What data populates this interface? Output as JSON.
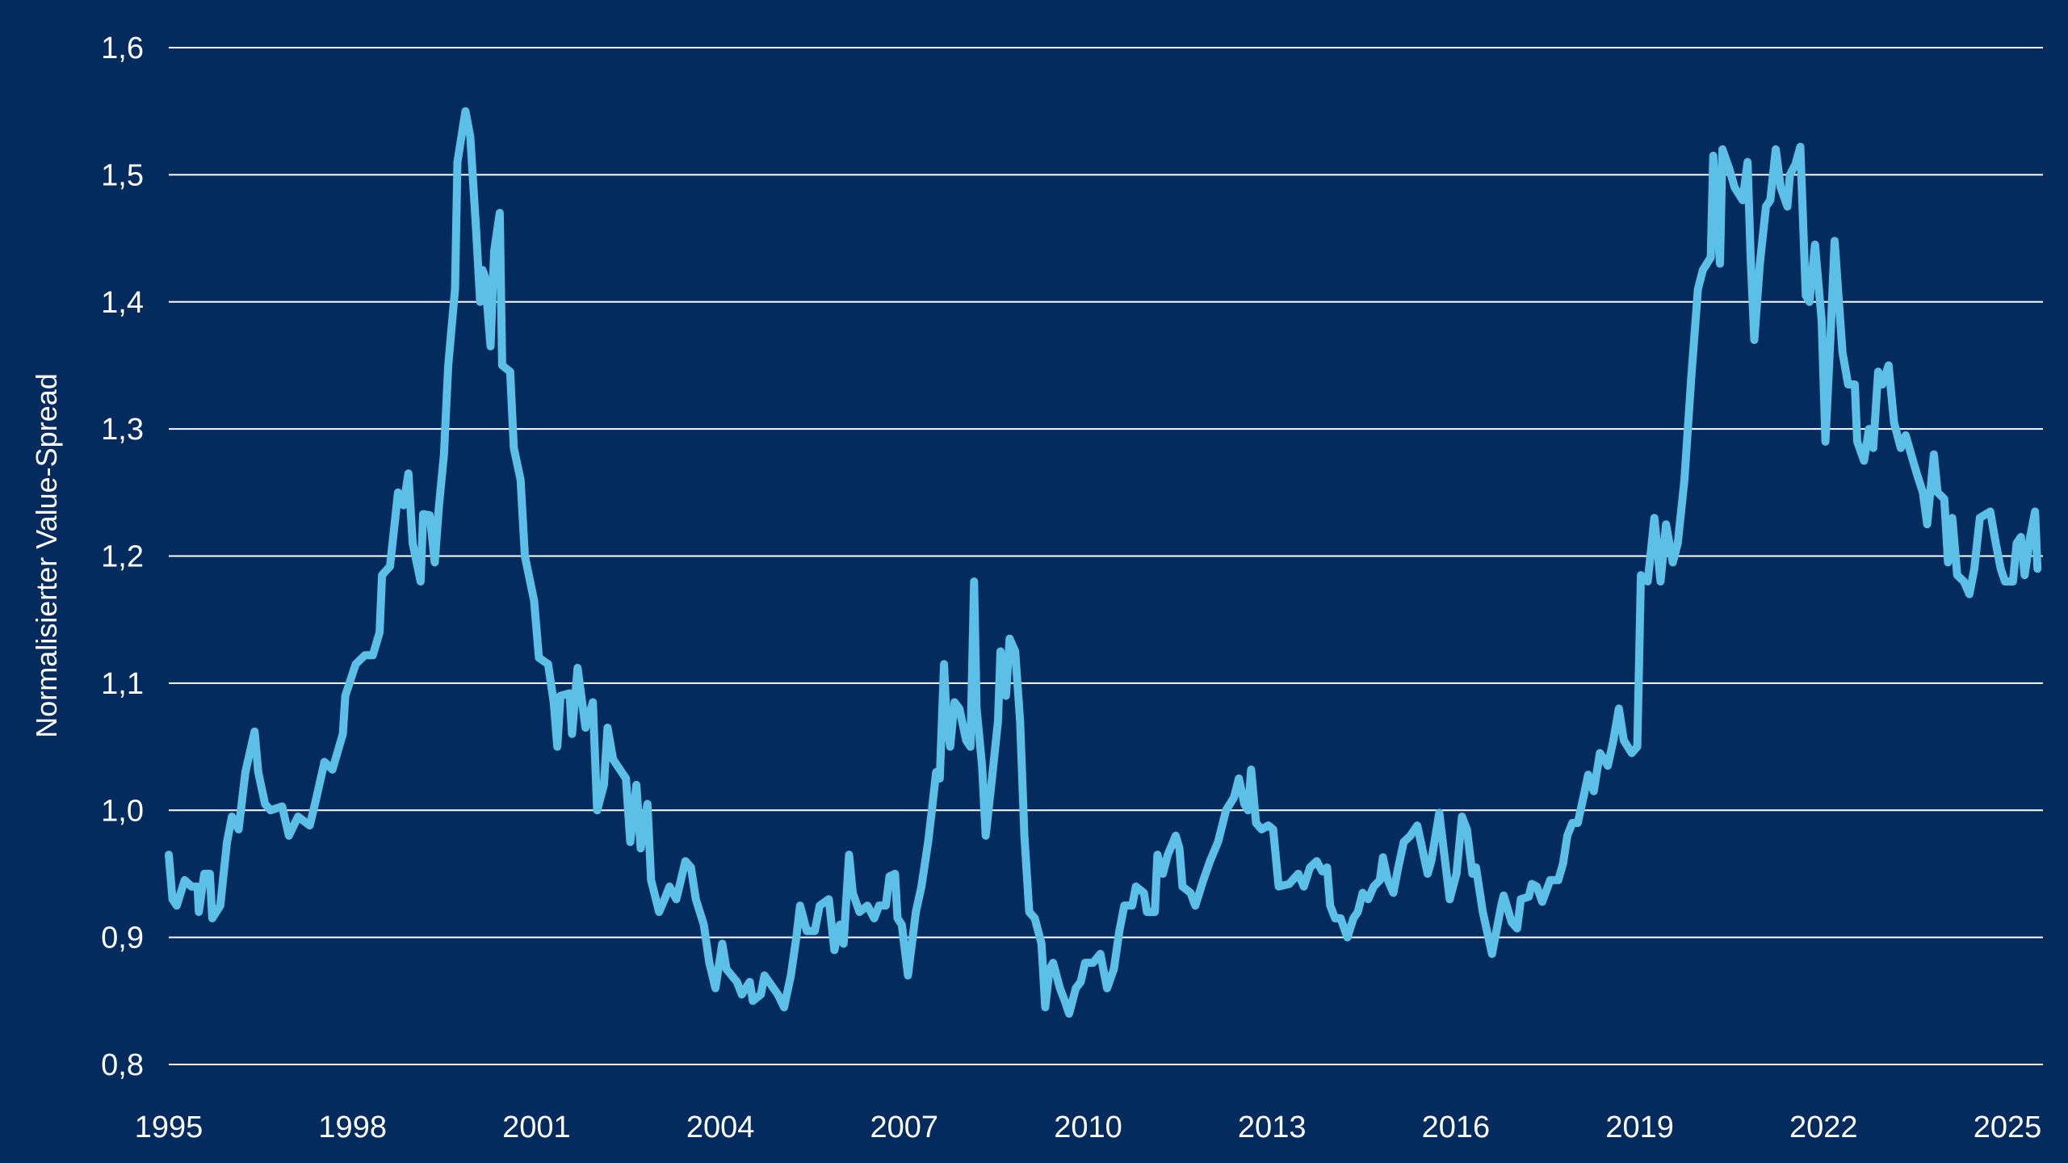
{
  "chart_data": {
    "type": "line",
    "title": "",
    "xlabel": "",
    "ylabel": "Normalisierter Value-Spread",
    "xlim": [
      1995,
      2025.5
    ],
    "ylim": [
      0.8,
      1.6
    ],
    "x_ticks": [
      1995,
      1998,
      2001,
      2004,
      2007,
      2010,
      2013,
      2016,
      2019,
      2022,
      2025
    ],
    "x_tick_labels": [
      "1995",
      "1998",
      "2001",
      "2004",
      "2007",
      "2010",
      "2013",
      "2016",
      "2019",
      "2022",
      "2025"
    ],
    "y_ticks": [
      0.8,
      0.9,
      1.0,
      1.1,
      1.2,
      1.3,
      1.4,
      1.5,
      1.6
    ],
    "y_tick_labels": [
      "0,8",
      "0,9",
      "1,0",
      "1,1",
      "1,2",
      "1,3",
      "1,4",
      "1,5",
      "1,6"
    ],
    "grid": "horizontal",
    "colors": {
      "background": "#032b5e",
      "line": "#5bbfe6",
      "grid": "#ffffff",
      "text": "#ffffff"
    },
    "series": [
      {
        "x": [
          1995.0,
          1995.06,
          1995.13,
          1995.26,
          1995.37,
          1995.47,
          1995.49,
          1995.58,
          1995.67,
          1995.71,
          1995.84,
          1995.95,
          1996.03,
          1996.14,
          1996.25,
          1996.4,
          1996.46,
          1996.57,
          1996.66,
          1996.85,
          1996.96,
          1997.11,
          1997.3,
          1997.41,
          1997.54,
          1997.67,
          1997.84,
          1997.88,
          1998.05,
          1998.2,
          1998.33,
          1998.44,
          1998.48,
          1998.61,
          1998.74,
          1998.83,
          1998.91,
          1998.98,
          1999.11,
          1999.15,
          1999.26,
          1999.34,
          1999.41,
          1999.49,
          1999.56,
          1999.67,
          1999.71,
          1999.84,
          1999.92,
          2000.01,
          2000.08,
          2000.12,
          2000.16,
          2000.25,
          2000.31,
          2000.4,
          2000.44,
          2000.57,
          2000.63,
          2000.74,
          2000.81,
          2000.96,
          2001.04,
          2001.19,
          2001.28,
          2001.34,
          2001.39,
          2001.54,
          2001.58,
          2001.67,
          2001.8,
          2001.92,
          2001.99,
          2002.1,
          2002.16,
          2002.25,
          2002.46,
          2002.53,
          2002.63,
          2002.7,
          2002.81,
          2002.87,
          2003.0,
          2003.09,
          2003.17,
          2003.28,
          2003.43,
          2003.52,
          2003.6,
          2003.73,
          2003.82,
          2003.92,
          2004.03,
          2004.1,
          2004.27,
          2004.35,
          2004.48,
          2004.53,
          2004.66,
          2004.72,
          2004.94,
          2005.04,
          2005.15,
          2005.24,
          2005.3,
          2005.41,
          2005.54,
          2005.62,
          2005.77,
          2005.86,
          2005.95,
          2006.01,
          2006.1,
          2006.16,
          2006.27,
          2006.4,
          2006.51,
          2006.59,
          2006.7,
          2006.76,
          2006.85,
          2006.89,
          2006.96,
          2007.06,
          2007.19,
          2007.28,
          2007.39,
          2007.45,
          2007.52,
          2007.58,
          2007.65,
          2007.69,
          2007.75,
          2007.82,
          2007.9,
          2008.01,
          2008.08,
          2008.14,
          2008.18,
          2008.27,
          2008.33,
          2008.42,
          2008.53,
          2008.57,
          2008.66,
          2008.72,
          2008.81,
          2008.89,
          2008.96,
          2009.04,
          2009.13,
          2009.24,
          2009.3,
          2009.37,
          2009.43,
          2009.54,
          2009.62,
          2009.69,
          2009.8,
          2009.88,
          2009.95,
          2010.08,
          2010.2,
          2010.31,
          2010.42,
          2010.51,
          2010.59,
          2010.72,
          2010.78,
          2010.91,
          2010.96,
          2011.09,
          2011.13,
          2011.22,
          2011.3,
          2011.43,
          2011.49,
          2011.54,
          2011.67,
          2011.75,
          2011.88,
          2011.99,
          2012.12,
          2012.25,
          2012.38,
          2012.46,
          2012.55,
          2012.61,
          2012.66,
          2012.74,
          2012.83,
          2012.94,
          2013.02,
          2013.11,
          2013.28,
          2013.43,
          2013.52,
          2013.62,
          2013.73,
          2013.82,
          2013.9,
          2013.95,
          2014.03,
          2014.12,
          2014.23,
          2014.33,
          2014.4,
          2014.48,
          2014.57,
          2014.66,
          2014.76,
          2014.81,
          2014.89,
          2014.98,
          2015.06,
          2015.15,
          2015.26,
          2015.37,
          2015.43,
          2015.54,
          2015.6,
          2015.73,
          2015.8,
          2015.9,
          2016.01,
          2016.1,
          2016.18,
          2016.27,
          2016.33,
          2016.44,
          2016.59,
          2016.74,
          2016.78,
          2016.91,
          2017.0,
          2017.06,
          2017.19,
          2017.24,
          2017.32,
          2017.41,
          2017.54,
          2017.67,
          2017.75,
          2017.82,
          2017.9,
          2017.99,
          2018.08,
          2018.16,
          2018.25,
          2018.35,
          2018.42,
          2018.48,
          2018.57,
          2018.66,
          2018.74,
          2018.87,
          2018.96,
          2019.02,
          2019.13,
          2019.24,
          2019.34,
          2019.43,
          2019.54,
          2019.62,
          2019.73,
          2019.84,
          2019.95,
          2020.03,
          2020.16,
          2020.2,
          2020.31,
          2020.35,
          2020.46,
          2020.55,
          2020.68,
          2020.76,
          2020.81,
          2020.87,
          2020.96,
          2021.06,
          2021.13,
          2021.22,
          2021.3,
          2021.41,
          2021.45,
          2021.54,
          2021.62,
          2021.71,
          2021.77,
          2021.86,
          2021.97,
          2022.03,
          2022.12,
          2022.18,
          2022.25,
          2022.31,
          2022.4,
          2022.51,
          2022.55,
          2022.66,
          2022.74,
          2022.81,
          2022.89,
          2022.96,
          2023.06,
          2023.15,
          2023.26,
          2023.34,
          2023.43,
          2023.52,
          2023.62,
          2023.69,
          2023.8,
          2023.86,
          2023.97,
          2024.03,
          2024.1,
          2024.18,
          2024.29,
          2024.38,
          2024.46,
          2024.55,
          2024.72,
          2024.81,
          2024.89,
          2024.96,
          2025.09,
          2025.15,
          2025.22,
          2025.28,
          2025.37,
          2025.45,
          2025.49
        ],
        "values": [
          0.965,
          0.93,
          0.925,
          0.945,
          0.94,
          0.94,
          0.92,
          0.95,
          0.95,
          0.915,
          0.925,
          0.975,
          0.995,
          0.985,
          1.03,
          1.062,
          1.03,
          1.005,
          1.0,
          1.003,
          0.98,
          0.995,
          0.988,
          1.01,
          1.038,
          1.032,
          1.06,
          1.09,
          1.115,
          1.122,
          1.122,
          1.14,
          1.185,
          1.192,
          1.25,
          1.24,
          1.265,
          1.21,
          1.18,
          1.233,
          1.232,
          1.195,
          1.24,
          1.28,
          1.35,
          1.41,
          1.51,
          1.55,
          1.53,
          1.46,
          1.4,
          1.425,
          1.42,
          1.365,
          1.44,
          1.47,
          1.35,
          1.345,
          1.285,
          1.26,
          1.2,
          1.165,
          1.12,
          1.115,
          1.085,
          1.05,
          1.09,
          1.092,
          1.06,
          1.112,
          1.065,
          1.085,
          1.0,
          1.02,
          1.065,
          1.04,
          1.025,
          0.975,
          1.02,
          0.97,
          1.005,
          0.945,
          0.92,
          0.93,
          0.94,
          0.93,
          0.96,
          0.955,
          0.93,
          0.91,
          0.88,
          0.86,
          0.895,
          0.875,
          0.865,
          0.855,
          0.865,
          0.85,
          0.855,
          0.87,
          0.855,
          0.845,
          0.87,
          0.9,
          0.925,
          0.905,
          0.905,
          0.925,
          0.93,
          0.89,
          0.91,
          0.895,
          0.965,
          0.935,
          0.92,
          0.925,
          0.915,
          0.925,
          0.925,
          0.948,
          0.95,
          0.915,
          0.91,
          0.87,
          0.92,
          0.94,
          0.975,
          1.0,
          1.03,
          1.025,
          1.115,
          1.07,
          1.05,
          1.085,
          1.08,
          1.055,
          1.05,
          1.18,
          1.08,
          1.035,
          0.98,
          1.02,
          1.07,
          1.125,
          1.09,
          1.135,
          1.125,
          1.07,
          0.98,
          0.92,
          0.915,
          0.895,
          0.845,
          0.875,
          0.88,
          0.86,
          0.85,
          0.84,
          0.86,
          0.865,
          0.88,
          0.88,
          0.887,
          0.86,
          0.875,
          0.905,
          0.925,
          0.925,
          0.94,
          0.935,
          0.92,
          0.92,
          0.965,
          0.95,
          0.965,
          0.98,
          0.97,
          0.94,
          0.935,
          0.925,
          0.945,
          0.96,
          0.975,
          1.0,
          1.01,
          1.025,
          1.005,
          1.0,
          1.032,
          0.99,
          0.985,
          0.988,
          0.985,
          0.94,
          0.942,
          0.95,
          0.94,
          0.955,
          0.96,
          0.952,
          0.955,
          0.925,
          0.915,
          0.915,
          0.9,
          0.915,
          0.92,
          0.935,
          0.93,
          0.94,
          0.945,
          0.963,
          0.945,
          0.935,
          0.955,
          0.975,
          0.98,
          0.988,
          0.975,
          0.95,
          0.96,
          0.998,
          0.97,
          0.93,
          0.95,
          0.995,
          0.985,
          0.95,
          0.955,
          0.92,
          0.887,
          0.925,
          0.933,
          0.912,
          0.907,
          0.93,
          0.932,
          0.942,
          0.94,
          0.928,
          0.945,
          0.945,
          0.958,
          0.98,
          0.99,
          0.99,
          1.01,
          1.028,
          1.015,
          1.045,
          1.04,
          1.035,
          1.055,
          1.08,
          1.055,
          1.045,
          1.05,
          1.185,
          1.18,
          1.23,
          1.18,
          1.225,
          1.195,
          1.21,
          1.26,
          1.34,
          1.41,
          1.425,
          1.435,
          1.515,
          1.43,
          1.52,
          1.505,
          1.49,
          1.48,
          1.51,
          1.435,
          1.37,
          1.43,
          1.475,
          1.48,
          1.52,
          1.49,
          1.475,
          1.5,
          1.508,
          1.522,
          1.405,
          1.4,
          1.445,
          1.385,
          1.29,
          1.38,
          1.448,
          1.4,
          1.36,
          1.335,
          1.335,
          1.29,
          1.275,
          1.3,
          1.285,
          1.345,
          1.335,
          1.35,
          1.305,
          1.285,
          1.295,
          1.28,
          1.265,
          1.25,
          1.225,
          1.28,
          1.25,
          1.245,
          1.195,
          1.23,
          1.185,
          1.18,
          1.17,
          1.19,
          1.23,
          1.235,
          1.21,
          1.19,
          1.18,
          1.18,
          1.21,
          1.215,
          1.185,
          1.215,
          1.235,
          1.19
        ]
      }
    ]
  }
}
